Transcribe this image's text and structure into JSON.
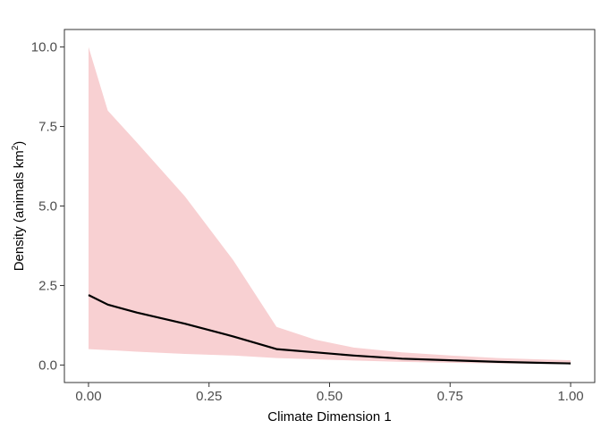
{
  "chart_data": {
    "type": "line",
    "xlabel": "Climate Dimension 1",
    "ylabel": {
      "text": "Density (animals km",
      "superscript": "2",
      "close": ")"
    },
    "xlim": [
      -0.05,
      1.05
    ],
    "ylim": [
      -0.55,
      10.55
    ],
    "x_ticks": [
      0.0,
      0.25,
      0.5,
      0.75,
      1.0
    ],
    "x_tick_labels": [
      "0.00",
      "0.25",
      "0.50",
      "0.75",
      "1.00"
    ],
    "y_ticks": [
      0.0,
      2.5,
      5.0,
      7.5,
      10.0
    ],
    "y_tick_labels": [
      "0.0",
      "2.5",
      "5.0",
      "7.5",
      "10.0"
    ],
    "grid": false,
    "series": [
      {
        "x": [
          0.0,
          0.04,
          0.1,
          0.2,
          0.3,
          0.39,
          0.47,
          0.55,
          0.65,
          0.75,
          0.85,
          0.93,
          1.0
        ],
        "mean": [
          2.2,
          1.9,
          1.65,
          1.3,
          0.9,
          0.5,
          0.4,
          0.3,
          0.2,
          0.15,
          0.1,
          0.07,
          0.05
        ],
        "lower": [
          0.5,
          0.47,
          0.42,
          0.35,
          0.3,
          0.22,
          0.18,
          0.14,
          0.1,
          0.07,
          0.05,
          0.04,
          0.03
        ],
        "upper": [
          10.0,
          8.0,
          7.0,
          5.3,
          3.3,
          1.2,
          0.8,
          0.55,
          0.4,
          0.3,
          0.22,
          0.18,
          0.15
        ]
      }
    ],
    "colors": {
      "line": "#000000",
      "ribbon": "#f8d0d2",
      "axis": "#333333",
      "tick_label": "#4d4d4d",
      "background": "#ffffff"
    }
  }
}
